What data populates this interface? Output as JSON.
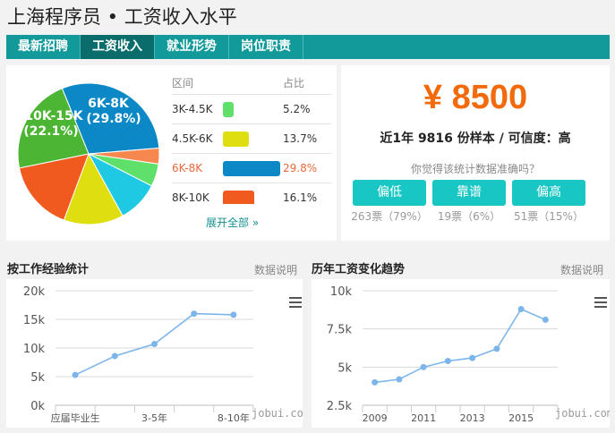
{
  "header": {
    "title": "上海程序员 • 工资收入水平"
  },
  "tabs": [
    {
      "label": "最新招聘",
      "active": false
    },
    {
      "label": "工资收入",
      "active": true
    },
    {
      "label": "就业形势",
      "active": false
    },
    {
      "label": "岗位职责",
      "active": false
    }
  ],
  "distribution": {
    "col_range": "区间",
    "col_ratio": "占比",
    "rows": [
      {
        "range": "3K-4.5K",
        "ratio": "5.2%",
        "value": 5.2,
        "color": "#5fe06a",
        "highlight": false
      },
      {
        "range": "4.5K-6K",
        "ratio": "13.7%",
        "value": 13.7,
        "color": "#dede10",
        "highlight": false
      },
      {
        "range": "6K-8K",
        "ratio": "29.8%",
        "value": 29.8,
        "color": "#0b88c5",
        "highlight": true
      },
      {
        "range": "8K-10K",
        "ratio": "16.1%",
        "value": 16.1,
        "color": "#f05a1e",
        "highlight": false
      }
    ],
    "expand_label": "展开全部 »",
    "highlight_color": "#e8693a"
  },
  "chart_data": [
    {
      "type": "pie",
      "slices": [
        {
          "label": "6K-8K",
          "pct_label": "(29.8%)",
          "value": 29.8,
          "color": "#0b88c5"
        },
        {
          "value": 3.6,
          "color": "#f5874f"
        },
        {
          "label": "3K-4.5K",
          "value": 5.2,
          "color": "#5fe06a"
        },
        {
          "value": 9.5,
          "color": "#1fc8e3"
        },
        {
          "label": "4.5K-6K",
          "value": 13.7,
          "color": "#dede10"
        },
        {
          "label": "8K-10K",
          "value": 16.1,
          "color": "#f05a1e"
        },
        {
          "label": "10K-15K",
          "pct_label": "(22.1%)",
          "value": 22.1,
          "color": "#4cb534"
        }
      ]
    },
    {
      "type": "line",
      "title": "按工作经验统计",
      "link": "数据说明",
      "credit": "jobui.com",
      "tick_labels": [
        "应届毕业生",
        "",
        "3-5年",
        "",
        "8-10年"
      ],
      "values": [
        5300,
        8600,
        10700,
        16000,
        15800
      ],
      "yticks": [
        "0k",
        "5k",
        "10k",
        "15k",
        "20k"
      ],
      "ylim": [
        0,
        20000
      ],
      "color": "#7cb5ec"
    },
    {
      "type": "line",
      "title": "历年工资变化趋势",
      "link": "数据说明",
      "credit": "jobui.com",
      "x": [
        2009,
        2010,
        2011,
        2012,
        2013,
        2014,
        2015,
        2016
      ],
      "tick_labels": [
        "2009",
        "",
        "2011",
        "",
        "2013",
        "",
        "2015",
        ""
      ],
      "values": [
        4000,
        4200,
        5000,
        5400,
        5600,
        6200,
        8800,
        8100
      ],
      "yticks": [
        "2.5k",
        "5k",
        "7.5k",
        "10k"
      ],
      "ylim": [
        2500,
        10000
      ],
      "color": "#7cb5ec"
    }
  ],
  "stats": {
    "price": "¥ 8500",
    "sample": "近1年 9816 份样本 / 可信度：高",
    "question": "你觉得该统计数据准确吗？",
    "votes": [
      {
        "label": "偏低",
        "count": "263票（79%）"
      },
      {
        "label": "靠谱",
        "count": "19票（6%）"
      },
      {
        "label": "偏高",
        "count": "51票（15%）"
      }
    ]
  }
}
